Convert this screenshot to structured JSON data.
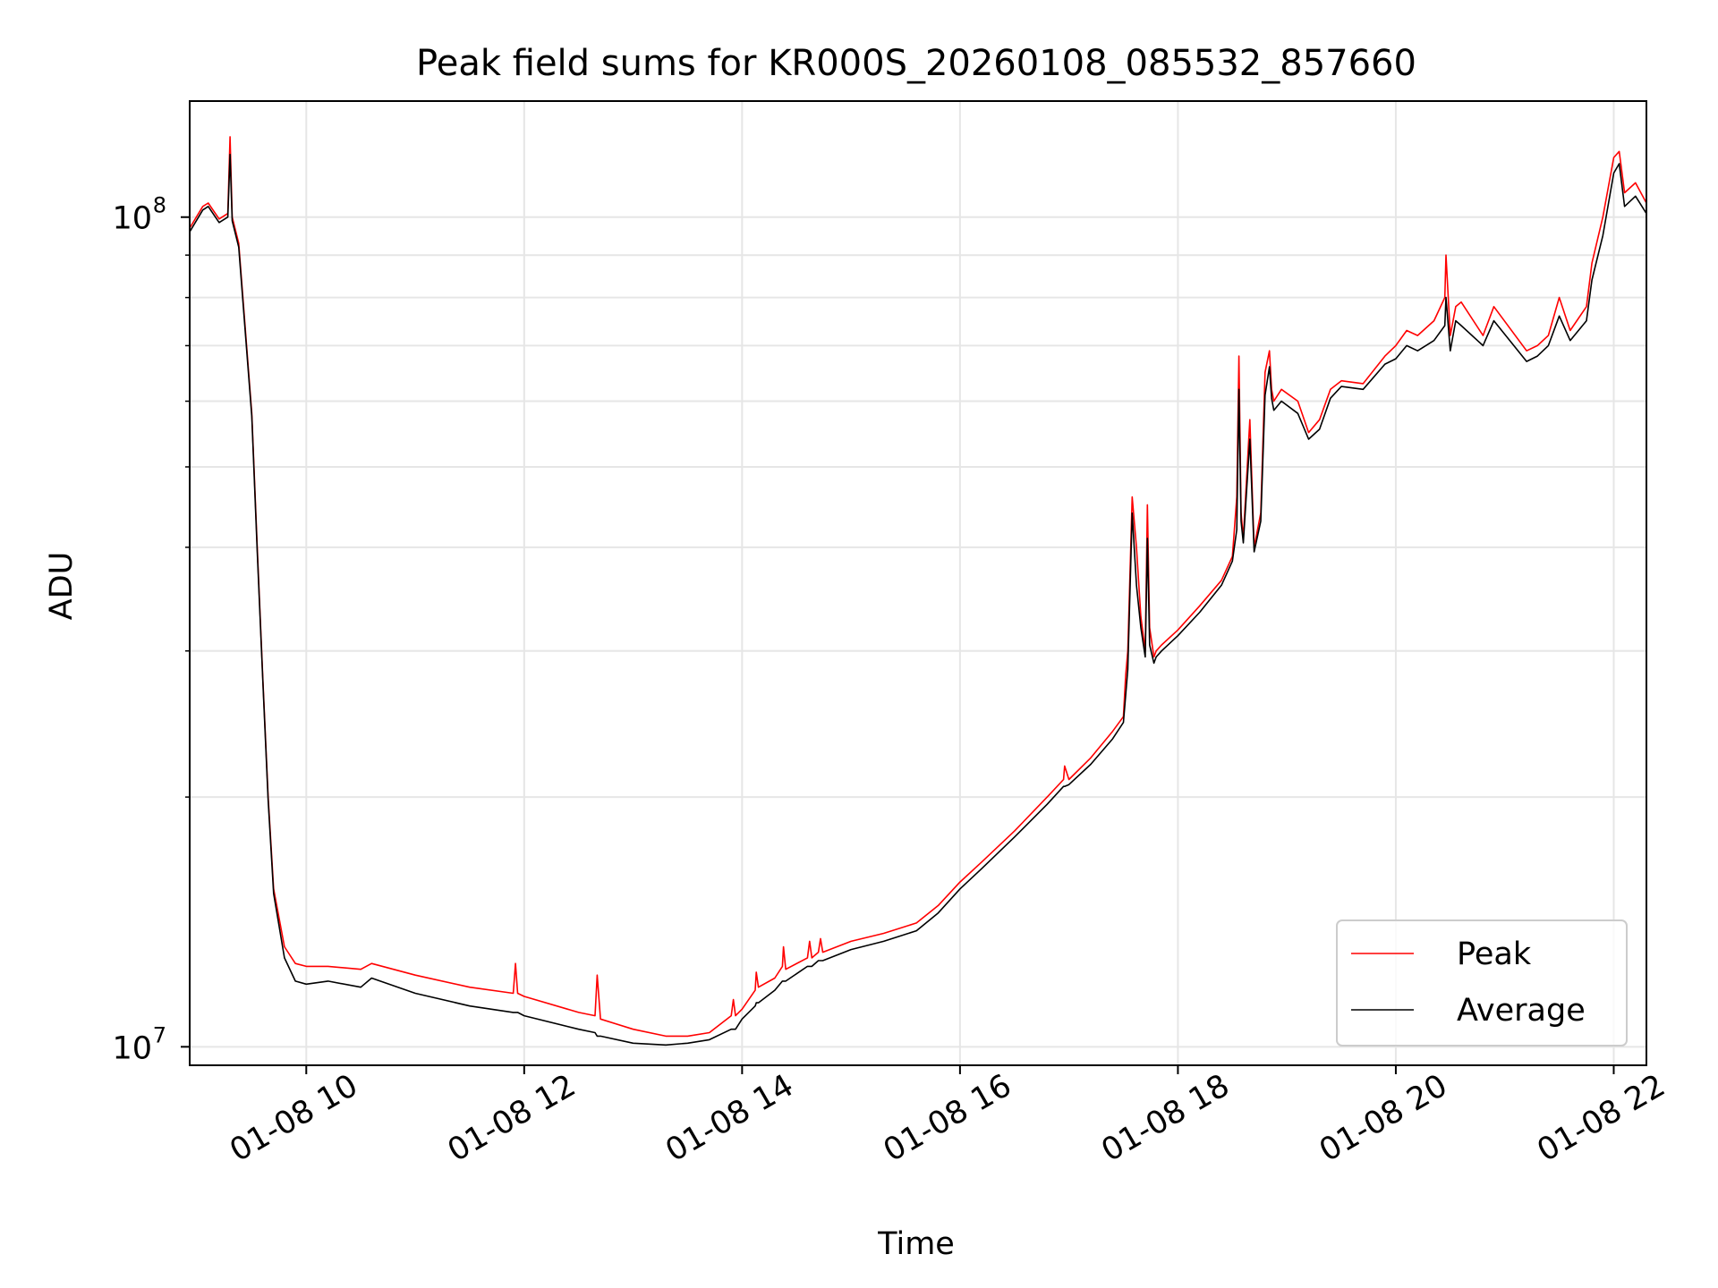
{
  "chart_data": {
    "type": "line",
    "title": "Peak field sums for KR000S_20260108_085532_857660",
    "xlabel": "Time",
    "ylabel": "ADU",
    "yscale": "log",
    "grid": true,
    "xlim": [
      8.93,
      22.3
    ],
    "ylim": [
      9500000,
      138000000
    ],
    "x_unit": "hours since 01-08 00:00",
    "x_ticks": [
      {
        "value": 10,
        "label": "01-08 10"
      },
      {
        "value": 12,
        "label": "01-08 12"
      },
      {
        "value": 14,
        "label": "01-08 14"
      },
      {
        "value": 16,
        "label": "01-08 16"
      },
      {
        "value": 18,
        "label": "01-08 18"
      },
      {
        "value": 20,
        "label": "01-08 20"
      },
      {
        "value": 22,
        "label": "01-08 22"
      }
    ],
    "y_ticks": [
      {
        "value": 10000000,
        "base": "10",
        "exp": "7"
      },
      {
        "value": 100000000,
        "base": "10",
        "exp": "8"
      }
    ],
    "legend": {
      "position": "bottom-right"
    },
    "series": [
      {
        "name": "Peak",
        "color": "#ff0000",
        "x": [
          8.93,
          9.05,
          9.1,
          9.2,
          9.28,
          9.3,
          9.32,
          9.38,
          9.5,
          9.55,
          9.6,
          9.65,
          9.7,
          9.8,
          9.9,
          10.0,
          10.2,
          10.5,
          10.6,
          11.0,
          11.5,
          11.9,
          11.92,
          11.94,
          12.0,
          12.5,
          12.65,
          12.67,
          12.7,
          13.0,
          13.3,
          13.5,
          13.7,
          13.9,
          13.92,
          13.94,
          14.0,
          14.12,
          14.13,
          14.15,
          14.3,
          14.37,
          14.38,
          14.4,
          14.6,
          14.62,
          14.64,
          14.7,
          14.72,
          14.74,
          15.0,
          15.3,
          15.6,
          15.8,
          16.0,
          16.2,
          16.5,
          16.8,
          16.95,
          16.96,
          17.0,
          17.2,
          17.4,
          17.5,
          17.52,
          17.54,
          17.58,
          17.62,
          17.66,
          17.7,
          17.72,
          17.74,
          17.78,
          17.8,
          17.85,
          18.0,
          18.2,
          18.4,
          18.5,
          18.54,
          18.56,
          18.58,
          18.6,
          18.66,
          18.7,
          18.76,
          18.8,
          18.84,
          18.86,
          18.88,
          18.95,
          19.1,
          19.2,
          19.3,
          19.4,
          19.5,
          19.7,
          19.9,
          20.0,
          20.1,
          20.2,
          20.35,
          20.45,
          20.46,
          20.5,
          20.55,
          20.6,
          20.8,
          20.9,
          21.2,
          21.3,
          21.4,
          21.5,
          21.6,
          21.75,
          21.8,
          21.9,
          22.0,
          22.05,
          22.1,
          22.2,
          22.3
        ],
        "values": [
          97000000,
          103000000,
          104000000,
          99500000,
          101000000,
          125000000,
          100000000,
          93000000,
          58000000,
          40000000,
          28000000,
          20000000,
          15500000,
          13200000,
          12600000,
          12500000,
          12500000,
          12400000,
          12600000,
          12200000,
          11800000,
          11600000,
          12600000,
          11600000,
          11500000,
          11000000,
          10900000,
          12200000,
          10800000,
          10500000,
          10300000,
          10300000,
          10400000,
          10900000,
          11400000,
          10900000,
          11100000,
          11700000,
          12300000,
          11800000,
          12100000,
          12500000,
          13200000,
          12400000,
          12800000,
          13400000,
          12800000,
          13000000,
          13500000,
          13000000,
          13400000,
          13700000,
          14100000,
          14800000,
          15800000,
          16700000,
          18200000,
          20000000,
          21000000,
          21800000,
          21000000,
          22300000,
          24000000,
          25000000,
          28000000,
          30000000,
          46000000,
          40000000,
          33000000,
          30000000,
          45000000,
          32000000,
          29500000,
          30000000,
          30500000,
          31800000,
          34000000,
          36500000,
          39000000,
          46000000,
          68000000,
          44000000,
          41000000,
          57000000,
          40000000,
          44000000,
          65000000,
          69000000,
          62000000,
          60000000,
          62000000,
          60000000,
          55000000,
          57000000,
          62000000,
          63500000,
          63000000,
          68000000,
          70000000,
          73000000,
          72000000,
          75000000,
          80000000,
          90000000,
          72000000,
          78000000,
          79000000,
          72000000,
          78000000,
          69000000,
          70000000,
          72000000,
          80000000,
          73000000,
          78000000,
          88000000,
          100000000,
          118000000,
          120000000,
          107000000,
          110000000,
          104000000
        ]
      },
      {
        "name": "Average",
        "color": "#000000",
        "x": [
          8.93,
          9.05,
          9.1,
          9.2,
          9.28,
          9.3,
          9.32,
          9.38,
          9.5,
          9.55,
          9.6,
          9.65,
          9.7,
          9.8,
          9.9,
          10.0,
          10.2,
          10.5,
          10.6,
          11.0,
          11.5,
          11.9,
          11.92,
          11.94,
          12.0,
          12.5,
          12.65,
          12.67,
          12.7,
          13.0,
          13.3,
          13.5,
          13.7,
          13.9,
          13.92,
          13.94,
          14.0,
          14.12,
          14.13,
          14.15,
          14.3,
          14.37,
          14.38,
          14.4,
          14.6,
          14.62,
          14.64,
          14.7,
          14.72,
          14.74,
          15.0,
          15.3,
          15.6,
          15.8,
          16.0,
          16.2,
          16.5,
          16.8,
          16.95,
          16.96,
          17.0,
          17.2,
          17.4,
          17.5,
          17.52,
          17.54,
          17.58,
          17.62,
          17.66,
          17.7,
          17.72,
          17.74,
          17.78,
          17.8,
          17.85,
          18.0,
          18.2,
          18.4,
          18.5,
          18.54,
          18.56,
          18.58,
          18.6,
          18.66,
          18.7,
          18.76,
          18.8,
          18.84,
          18.86,
          18.88,
          18.95,
          19.1,
          19.2,
          19.3,
          19.4,
          19.5,
          19.7,
          19.9,
          20.0,
          20.1,
          20.2,
          20.35,
          20.45,
          20.46,
          20.5,
          20.55,
          20.6,
          20.8,
          20.9,
          21.2,
          21.3,
          21.4,
          21.5,
          21.6,
          21.75,
          21.8,
          21.9,
          22.0,
          22.05,
          22.1,
          22.2,
          22.3
        ],
        "values": [
          96000000,
          102000000,
          103000000,
          98500000,
          100000000,
          119000000,
          99000000,
          92000000,
          57500000,
          39500000,
          27800000,
          19800000,
          15300000,
          12800000,
          12000000,
          11900000,
          12000000,
          11800000,
          12100000,
          11600000,
          11200000,
          11000000,
          11000000,
          11000000,
          10900000,
          10500000,
          10400000,
          10300000,
          10300000,
          10100000,
          10050000,
          10100000,
          10200000,
          10500000,
          10500000,
          10500000,
          10800000,
          11200000,
          11300000,
          11300000,
          11700000,
          12000000,
          12000000,
          12000000,
          12500000,
          12500000,
          12500000,
          12700000,
          12700000,
          12700000,
          13100000,
          13400000,
          13800000,
          14500000,
          15500000,
          16400000,
          17900000,
          19600000,
          20600000,
          20600000,
          20700000,
          21900000,
          23500000,
          24600000,
          26500000,
          28500000,
          44000000,
          36000000,
          32000000,
          29500000,
          41000000,
          30500000,
          29000000,
          29500000,
          30000000,
          31300000,
          33400000,
          36000000,
          38500000,
          42000000,
          62000000,
          43000000,
          40500000,
          54000000,
          39500000,
          43000000,
          61000000,
          66000000,
          60500000,
          58500000,
          60000000,
          58000000,
          54000000,
          55500000,
          60500000,
          62500000,
          62000000,
          66500000,
          67500000,
          70000000,
          69000000,
          71000000,
          74000000,
          80000000,
          69000000,
          75000000,
          74000000,
          70000000,
          75000000,
          67000000,
          68000000,
          70000000,
          76000000,
          71000000,
          75000000,
          84000000,
          95000000,
          113000000,
          116000000,
          103000000,
          106000000,
          101000000
        ]
      }
    ]
  }
}
